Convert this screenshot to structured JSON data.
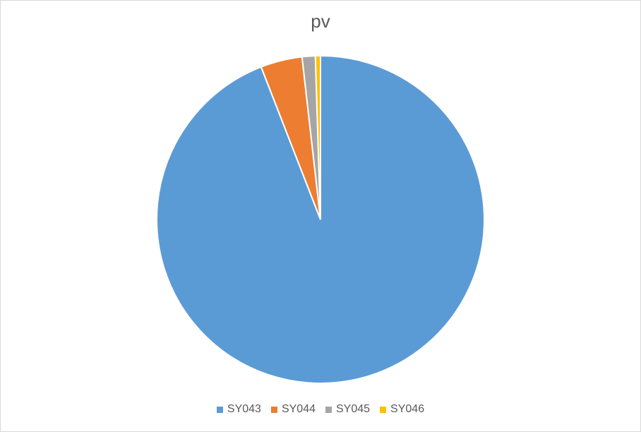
{
  "chart_data": {
    "type": "pie",
    "title": "pv",
    "categories": [
      "SY043",
      "SY044",
      "SY045",
      "SY046"
    ],
    "values": [
      94.0,
      4.1,
      1.3,
      0.5
    ],
    "colors": [
      "#5B9BD5",
      "#ED7D31",
      "#A5A5A5",
      "#FFC000"
    ],
    "legend_position": "bottom"
  }
}
